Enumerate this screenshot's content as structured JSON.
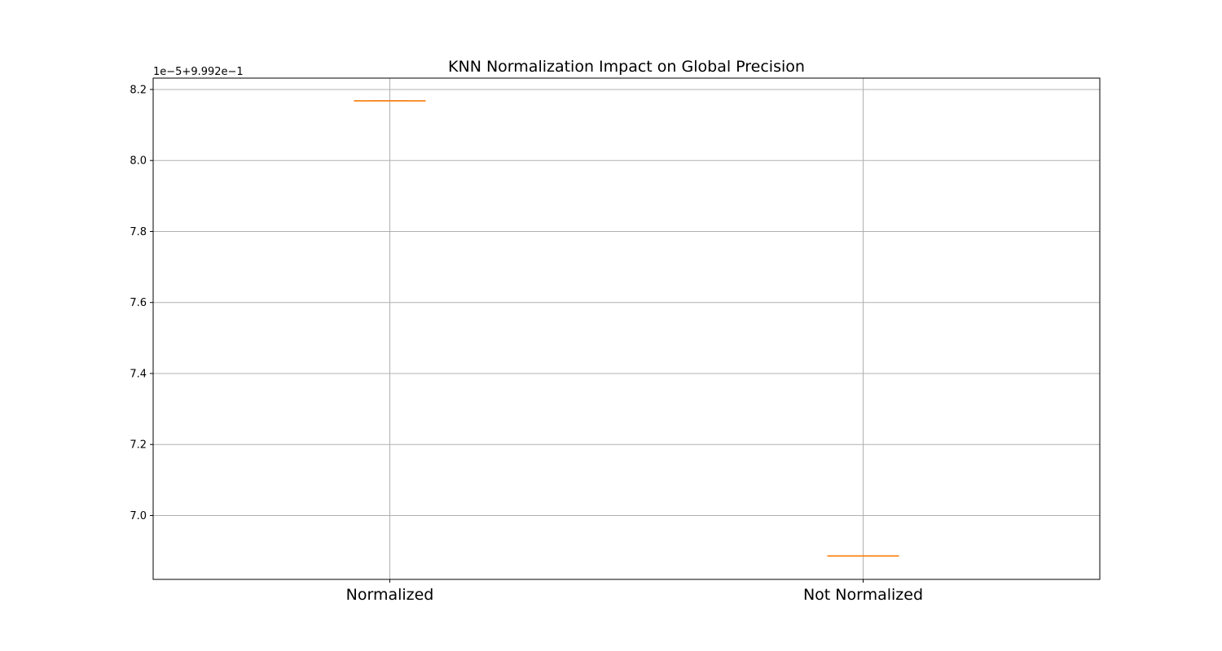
{
  "chart_data": {
    "type": "box",
    "title": "KNN Normalization Impact on Global Precision",
    "xlabel": "",
    "ylabel": "",
    "categories": [
      "Normalized",
      "Not Normalized"
    ],
    "values": [
      8.168,
      6.886
    ],
    "y_offset_label": "1e−5+9.992e−1",
    "ylim": [
      6.82,
      8.232
    ],
    "yticks": [
      7.0,
      7.2,
      7.4,
      7.6,
      7.8,
      8.0,
      8.2
    ],
    "ytick_labels": [
      "7.0",
      "7.2",
      "7.4",
      "7.6",
      "7.8",
      "8.0",
      "8.2"
    ],
    "grid": true,
    "colors": {
      "median": "#ff7f0e",
      "box": "#000000",
      "grid": "#b0b0b0"
    }
  }
}
